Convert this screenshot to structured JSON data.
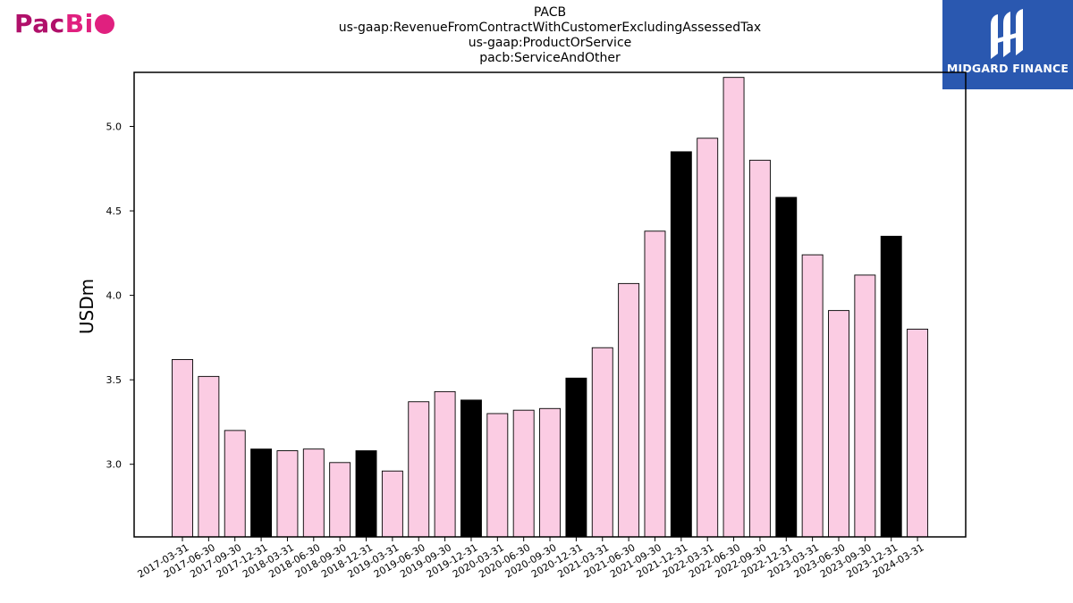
{
  "brand": {
    "left_logo_part1": "Pac",
    "left_logo_part2": "Bi",
    "right_logo_name": "MIDGARD FINANCE"
  },
  "colors": {
    "bar_default": "#fbcce3",
    "bar_highlight": "#000000",
    "edge": "#000000",
    "brand_magenta": "#e0207f",
    "midgard_blue": "#2a58b0"
  },
  "chart_data": {
    "type": "bar",
    "title_lines": [
      "PACB",
      "us-gaap:RevenueFromContractWithCustomerExcludingAssessedTax",
      "us-gaap:ProductOrService",
      "pacb:ServiceAndOther"
    ],
    "xlabel": "",
    "ylabel": "USDm",
    "ylim": [
      2.57,
      5.32
    ],
    "yticks": [
      3.0,
      3.5,
      4.0,
      4.5,
      5.0
    ],
    "ytick_labels": [
      "3.0",
      "3.5",
      "4.0",
      "4.5",
      "5.0"
    ],
    "grid": false,
    "categories": [
      "2017-03-31",
      "2017-06-30",
      "2017-09-30",
      "2017-12-31",
      "2018-03-31",
      "2018-06-30",
      "2018-09-30",
      "2018-12-31",
      "2019-03-31",
      "2019-06-30",
      "2019-09-30",
      "2019-12-31",
      "2020-03-31",
      "2020-06-30",
      "2020-09-30",
      "2020-12-31",
      "2021-03-31",
      "2021-06-30",
      "2021-09-30",
      "2021-12-31",
      "2022-03-31",
      "2022-06-30",
      "2022-09-30",
      "2022-12-31",
      "2023-03-31",
      "2023-06-30",
      "2023-09-30",
      "2023-12-31",
      "2024-03-31"
    ],
    "values": [
      3.62,
      3.52,
      3.2,
      3.09,
      3.08,
      3.09,
      3.01,
      3.08,
      2.96,
      3.37,
      3.43,
      3.38,
      3.3,
      3.32,
      3.33,
      3.51,
      3.69,
      4.07,
      4.38,
      4.85,
      4.93,
      5.29,
      4.8,
      4.58,
      4.24,
      3.91,
      4.12,
      4.35,
      3.8
    ],
    "highlight_black": [
      false,
      false,
      false,
      true,
      false,
      false,
      false,
      true,
      false,
      false,
      false,
      true,
      false,
      false,
      false,
      true,
      false,
      false,
      false,
      true,
      false,
      false,
      false,
      true,
      false,
      false,
      false,
      true,
      false
    ]
  }
}
